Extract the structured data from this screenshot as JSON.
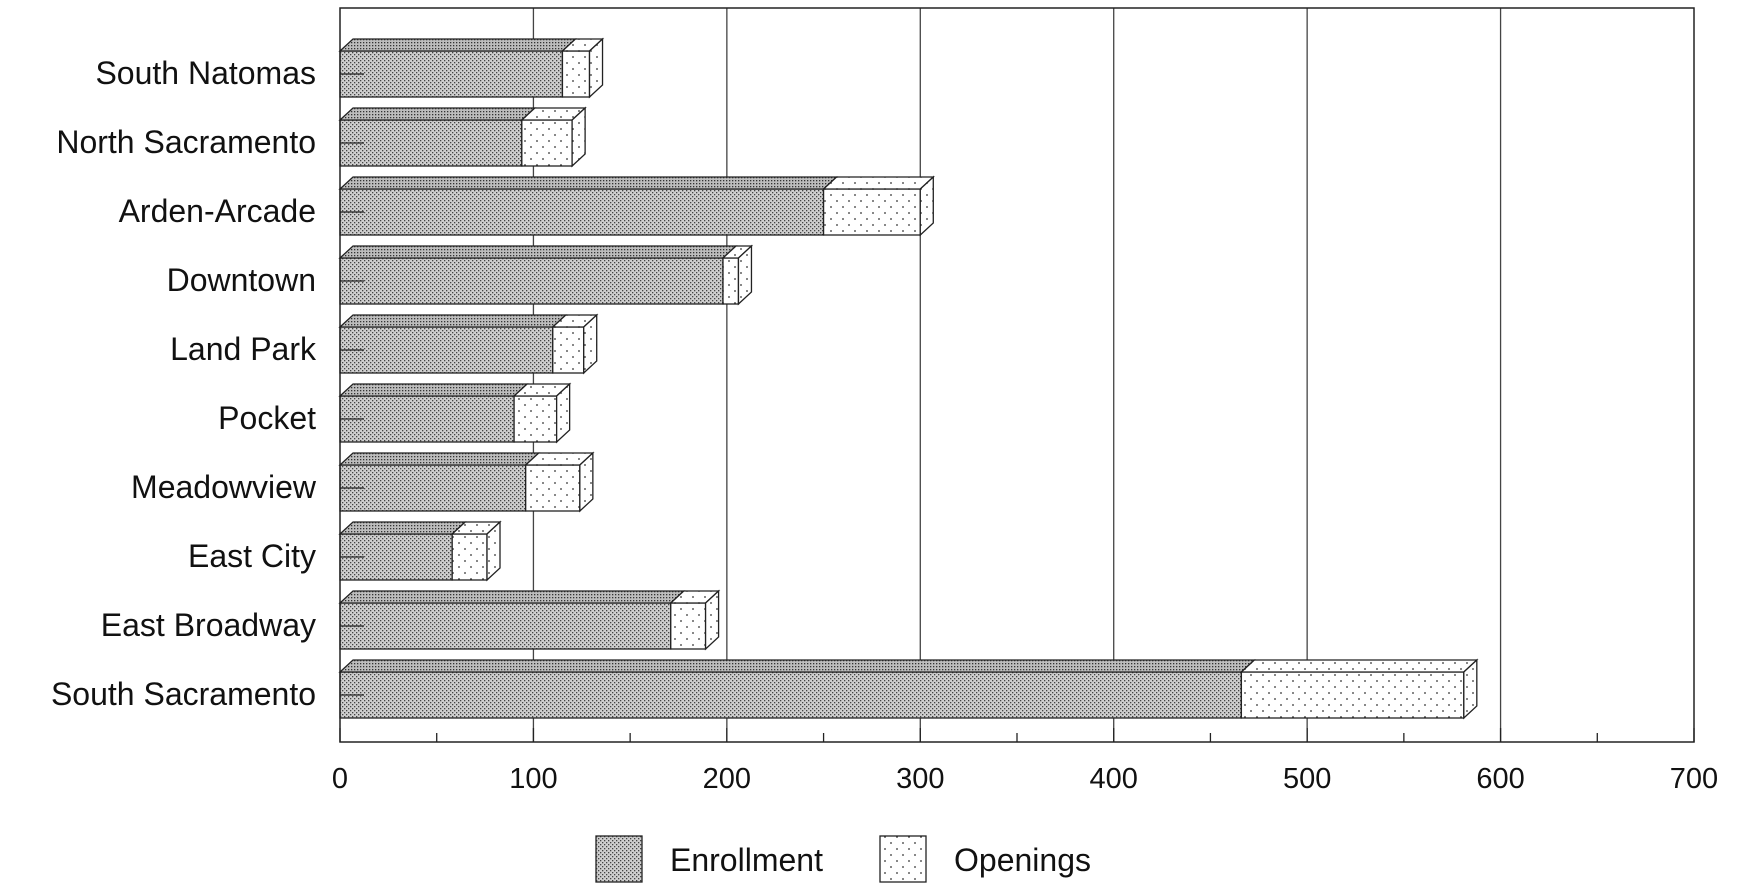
{
  "chart_data": {
    "type": "bar",
    "orientation": "horizontal",
    "stacked": true,
    "title": "",
    "xlabel": "",
    "ylabel": "",
    "xlim": [
      0,
      700
    ],
    "x_ticks": [
      0,
      100,
      200,
      300,
      400,
      500,
      600,
      700
    ],
    "x_tick_labels": [
      "0",
      "100",
      "200",
      "300",
      "400",
      "500",
      "600",
      "700"
    ],
    "grid": "vertical major gridlines",
    "legend_position": "bottom-center",
    "categories": [
      "South Natomas",
      "North Sacramento",
      "Arden-Arcade",
      "Downtown",
      "Land Park",
      "Pocket",
      "Meadowview",
      "East City",
      "East Broadway",
      "South Sacramento"
    ],
    "series": [
      {
        "name": "Enrollment",
        "pattern": "dense-dots",
        "values": [
          115,
          94,
          250,
          198,
          110,
          90,
          96,
          58,
          171,
          466
        ]
      },
      {
        "name": "Openings",
        "pattern": "sparse-dots",
        "values": [
          14,
          26,
          50,
          8,
          16,
          22,
          28,
          18,
          18,
          115
        ]
      }
    ]
  }
}
